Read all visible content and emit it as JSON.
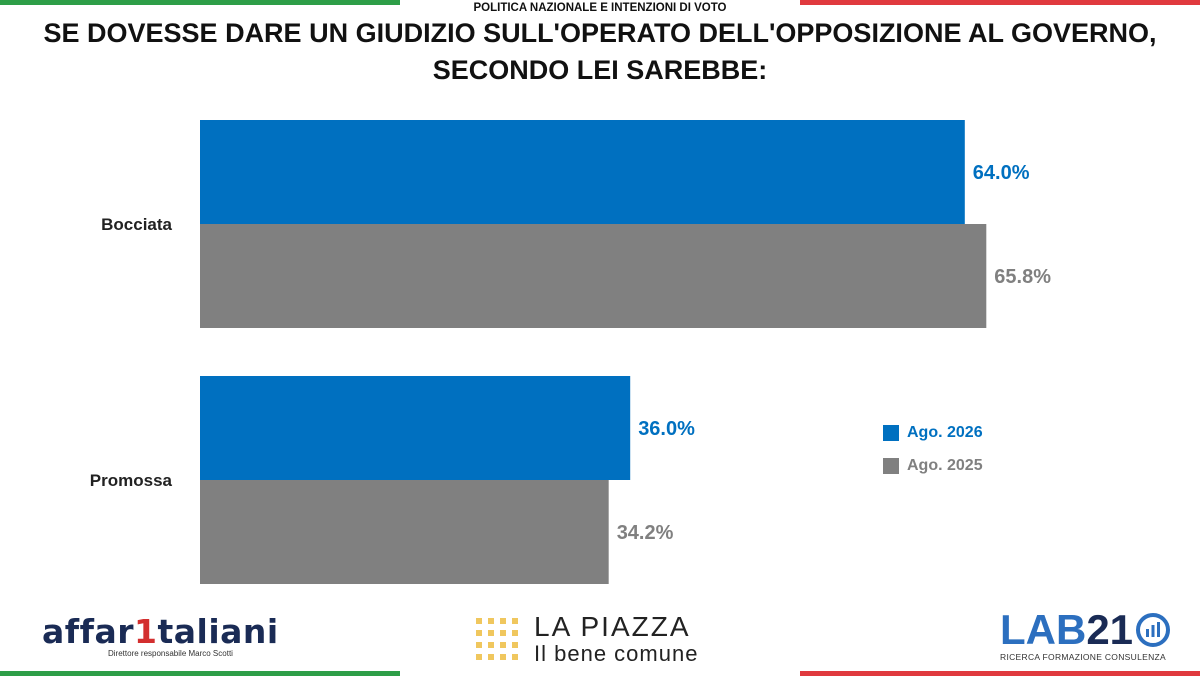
{
  "header": {
    "label": "POLITICA NAZIONALE E INTENZIONI DI VOTO"
  },
  "title": {
    "line1": "SE DOVESSE DARE UN GIUDIZIO SULL'OPERATO DELL'OPPOSIZIONE AL GOVERNO,",
    "line2": "SECONDO LEI SAREBBE:"
  },
  "chart_data": {
    "type": "bar",
    "orientation": "horizontal",
    "categories": [
      "Bocciata",
      "Promossa"
    ],
    "series": [
      {
        "name": "Ago. 2026",
        "values": [
          64.0,
          36.0
        ],
        "labels": [
          "64.0%",
          "36.0%"
        ],
        "color": "#0070c0"
      },
      {
        "name": "Ago. 2025",
        "values": [
          65.8,
          34.2
        ],
        "labels": [
          "65.8%",
          "34.2%"
        ],
        "color": "#808080"
      }
    ],
    "xlim": [
      0,
      100
    ],
    "grid": false,
    "legend": "right"
  },
  "legend": {
    "items": [
      {
        "label": "Ago. 2026",
        "color": "#0070c0"
      },
      {
        "label": "Ago. 2025",
        "color": "#808080"
      }
    ]
  },
  "footer": {
    "affari": {
      "part1": "affar",
      "part2": "1",
      "part3": "taliani",
      "sub": "Direttore responsabile Marco Scotti"
    },
    "piazza": {
      "title": "LA PIAZZA",
      "sub": "Il bene comune"
    },
    "lab": {
      "part1": "LAB",
      "part2": "21",
      "sub": "RICERCA FORMAZIONE CONSULENZA"
    }
  },
  "colors": {
    "green": "#2e9e48",
    "red": "#e03a3e",
    "blue": "#0070c0",
    "gray": "#808080"
  }
}
